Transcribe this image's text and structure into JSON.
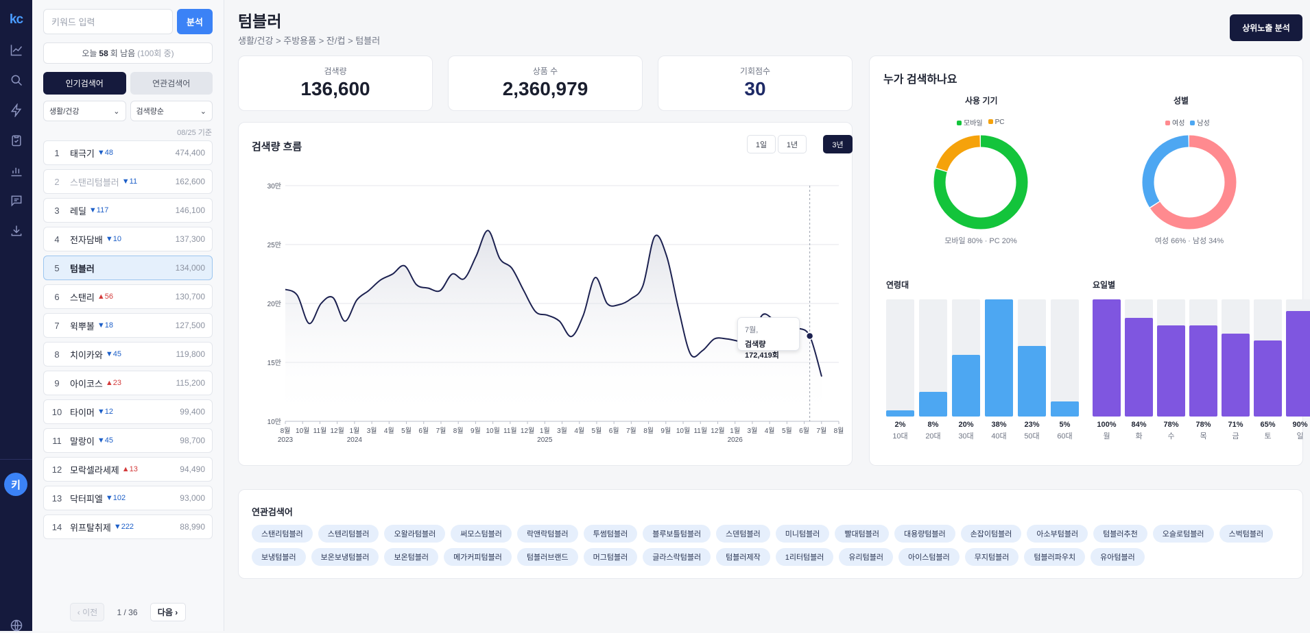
{
  "app": {
    "logo": "kc",
    "user_initial": "키"
  },
  "sidebar": {
    "search_placeholder": "키워드 입력",
    "search_button": "분석",
    "quota": {
      "prefix": "오늘",
      "count": "58",
      "suffix": "회 남음",
      "total": "(100회 중)"
    },
    "tabs": [
      {
        "label": "인기검색어",
        "active": true
      },
      {
        "label": "연관검색어",
        "active": false
      }
    ],
    "filters": [
      {
        "value": "생활/건강"
      },
      {
        "value": "검색량순"
      }
    ],
    "as_of": "08/25 기준",
    "keywords": [
      {
        "rank": "1",
        "name": "태극기",
        "delta": "▼48",
        "dir": "down",
        "volume": "474,400"
      },
      {
        "rank": "2",
        "name": "스탠리텀블러",
        "delta": "▼11",
        "dir": "down",
        "volume": "162,600",
        "dim": true
      },
      {
        "rank": "3",
        "name": "레딜",
        "delta": "▼117",
        "dir": "down",
        "volume": "146,100"
      },
      {
        "rank": "4",
        "name": "전자담배",
        "delta": "▼10",
        "dir": "down",
        "volume": "137,300"
      },
      {
        "rank": "5",
        "name": "텀블러",
        "delta": "",
        "dir": "",
        "volume": "134,000",
        "selected": true
      },
      {
        "rank": "6",
        "name": "스탠리",
        "delta": "▲56",
        "dir": "up",
        "volume": "130,700"
      },
      {
        "rank": "7",
        "name": "윅뿌볼",
        "delta": "▼18",
        "dir": "down",
        "volume": "127,500"
      },
      {
        "rank": "8",
        "name": "치이카와",
        "delta": "▼45",
        "dir": "down",
        "volume": "119,800"
      },
      {
        "rank": "9",
        "name": "아이코스",
        "delta": "▲23",
        "dir": "up",
        "volume": "115,200"
      },
      {
        "rank": "10",
        "name": "타이머",
        "delta": "▼12",
        "dir": "down",
        "volume": "99,400"
      },
      {
        "rank": "11",
        "name": "말랑이",
        "delta": "▼45",
        "dir": "down",
        "volume": "98,700"
      },
      {
        "rank": "12",
        "name": "모락셀라세제",
        "delta": "▲13",
        "dir": "up",
        "volume": "94,490"
      },
      {
        "rank": "13",
        "name": "닥터피엘",
        "delta": "▼102",
        "dir": "down",
        "volume": "93,000"
      },
      {
        "rank": "14",
        "name": "위프탈취제",
        "delta": "▼222",
        "dir": "down",
        "volume": "88,990"
      }
    ],
    "pager": {
      "prev": "‹ 이전",
      "current": "1 / 36",
      "next": "다음 ›"
    }
  },
  "header": {
    "title": "텀블러",
    "breadcrumb": "생활/건강 > 주방용품 > 잔/컵 > 텀블러",
    "action_button": "상위노출 분석"
  },
  "stats": [
    {
      "label": "검색량",
      "value": "136,600"
    },
    {
      "label": "상품 수",
      "value": "2,360,979"
    },
    {
      "label": "기회점수",
      "value": "30"
    }
  ],
  "trend": {
    "title": "검색량 흐름",
    "ranges": [
      {
        "label": "1일",
        "active": false
      },
      {
        "label": "1년",
        "active": false
      },
      {
        "label": "3년",
        "active": true
      }
    ],
    "tooltip": {
      "date": "7월,",
      "value": "검색량 172,419회"
    }
  },
  "chart_data": [
    {
      "type": "area",
      "title": "",
      "ylim": [
        100000,
        300000
      ],
      "y_ticks": [
        "10만",
        "15만",
        "20만",
        "25만",
        "30만"
      ],
      "x_ticks": [
        {
          "label": "8월",
          "year": "2023"
        },
        {
          "label": "10월",
          "year": ""
        },
        {
          "label": "11월",
          "year": ""
        },
        {
          "label": "12월",
          "year": ""
        },
        {
          "label": "1월",
          "year": "2024"
        },
        {
          "label": "3월",
          "year": ""
        },
        {
          "label": "4월",
          "year": ""
        },
        {
          "label": "5월",
          "year": ""
        },
        {
          "label": "6월",
          "year": ""
        },
        {
          "label": "7월",
          "year": ""
        },
        {
          "label": "8월",
          "year": ""
        },
        {
          "label": "9월",
          "year": ""
        },
        {
          "label": "10월",
          "year": ""
        },
        {
          "label": "11월",
          "year": ""
        },
        {
          "label": "12월",
          "year": ""
        },
        {
          "label": "1월",
          "year": "2025"
        },
        {
          "label": "3월",
          "year": ""
        },
        {
          "label": "4월",
          "year": ""
        },
        {
          "label": "5월",
          "year": ""
        },
        {
          "label": "6월",
          "year": ""
        },
        {
          "label": "7월",
          "year": ""
        },
        {
          "label": "8월",
          "year": ""
        },
        {
          "label": "9월",
          "year": ""
        },
        {
          "label": "10월",
          "year": ""
        },
        {
          "label": "11월",
          "year": ""
        },
        {
          "label": "12월",
          "year": ""
        },
        {
          "label": "1월",
          "year": "2026"
        },
        {
          "label": "3월",
          "year": ""
        },
        {
          "label": "4월",
          "year": ""
        },
        {
          "label": "5월",
          "year": ""
        },
        {
          "label": "6월",
          "year": ""
        },
        {
          "label": "7월",
          "year": ""
        },
        {
          "label": "8월",
          "year": ""
        }
      ],
      "values": [
        212000,
        207000,
        183000,
        200000,
        205000,
        185000,
        203000,
        211000,
        220000,
        225000,
        232000,
        216000,
        213000,
        211000,
        225000,
        221000,
        240000,
        262000,
        238000,
        230000,
        211000,
        193000,
        190000,
        185000,
        172000,
        190000,
        222000,
        200000,
        199000,
        204000,
        215000,
        257000,
        240000,
        195000,
        157000,
        160000,
        170000,
        170000,
        168000,
        165000,
        190000,
        186000,
        180000,
        179000,
        172419,
        138000
      ],
      "grid": true,
      "series": [
        {
          "values_ref": "values"
        }
      ]
    },
    {
      "type": "pie",
      "title": "사용 기기",
      "legend": [
        "모바일",
        "PC"
      ],
      "values": [
        80,
        20
      ],
      "colors": [
        "#13c43b",
        "#f5a20b"
      ],
      "summary": "모바일 80% · PC 20%"
    },
    {
      "type": "pie",
      "title": "성별",
      "legend": [
        "여성",
        "남성"
      ],
      "values": [
        66,
        34
      ],
      "colors": [
        "#ff8a8f",
        "#4da7f2"
      ],
      "summary": "여성 66% · 남성 34%"
    },
    {
      "type": "bar",
      "title": "연령대",
      "categories": [
        "10대",
        "20대",
        "30대",
        "40대",
        "50대",
        "60대"
      ],
      "values": [
        2,
        8,
        20,
        38,
        23,
        5
      ],
      "labels": [
        "2%",
        "8%",
        "20%",
        "38%",
        "23%",
        "5%"
      ],
      "max": 38,
      "color": "#4da7f2"
    },
    {
      "type": "bar",
      "title": "요일별",
      "categories": [
        "월",
        "화",
        "수",
        "목",
        "금",
        "토",
        "일"
      ],
      "values": [
        100,
        84,
        78,
        78,
        71,
        65,
        90
      ],
      "labels": [
        "100%",
        "84%",
        "78%",
        "78%",
        "71%",
        "65%",
        "90%"
      ],
      "max": 100,
      "color": "#7f56e0"
    }
  ],
  "who": {
    "title": "누가 검색하나요"
  },
  "related": {
    "title": "연관검색어",
    "chips": [
      "스탠리텀블러",
      "스텐리텀블러",
      "오왈라텀블러",
      "써모스텀블러",
      "락앤락텀블러",
      "투썸텀블러",
      "블루보틀텀블러",
      "스덴텀블러",
      "미니텀블러",
      "빨대텀블러",
      "대용량텀블러",
      "손잡이텀블러",
      "아소부텀블러",
      "텀블러추천",
      "오슬로텀블러",
      "스벅텀블러",
      "보냉텀블러",
      "보온보냉텀블러",
      "보온텀블러",
      "메가커피텀블러",
      "텀블러브랜드",
      "머그텀블러",
      "글라스락텀블러",
      "텀블러제작",
      "1리터텀블러",
      "유리텀블러",
      "아이스텀블러",
      "무지텀블러",
      "텀블러파우치",
      "유아텀블러"
    ]
  }
}
